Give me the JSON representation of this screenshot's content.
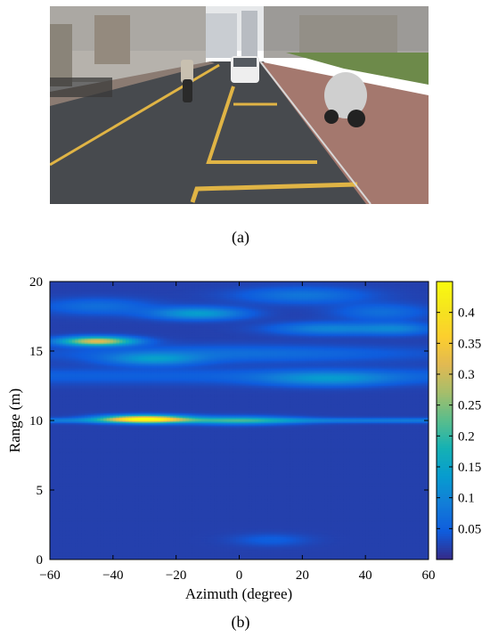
{
  "captions": {
    "a": "(a)",
    "b": "(b)"
  },
  "photo": {
    "scene": "street-scene-photo",
    "colors": {
      "sky": "#e6e8ea",
      "road": "#474a4e",
      "marking": "#e0b445",
      "sidewalk": "#a4786e",
      "grass": "#6d8a4a"
    }
  },
  "chart_data": {
    "type": "heatmap",
    "title": "",
    "xlabel": "Azimuth (degree)",
    "ylabel": "Range (m)",
    "xlim": [
      -60,
      60
    ],
    "ylim": [
      0,
      20
    ],
    "xticks": [
      -60,
      -40,
      -20,
      0,
      20,
      40,
      60
    ],
    "yticks": [
      0,
      5,
      10,
      15,
      20
    ],
    "colorbar": {
      "range": [
        0,
        0.45
      ],
      "ticks": [
        0.05,
        0.1,
        0.15,
        0.2,
        0.25,
        0.3,
        0.35,
        0.4
      ],
      "colormap": "parula"
    },
    "background_level": 0.02,
    "blobs": [
      {
        "azimuth": -30,
        "range": 10.1,
        "peak": 0.42,
        "width_az": 9,
        "width_r": 0.18
      },
      {
        "azimuth": -45,
        "range": 15.7,
        "peak": 0.3,
        "width_az": 8,
        "width_r": 0.22
      },
      {
        "azimuth": 0,
        "range": 10.0,
        "peak": 0.13,
        "width_az": 12,
        "width_r": 0.2
      },
      {
        "azimuth": -13,
        "range": 17.7,
        "peak": 0.12,
        "width_az": 10,
        "width_r": 0.3
      },
      {
        "azimuth": -27,
        "range": 14.4,
        "peak": 0.1,
        "width_az": 10,
        "width_r": 0.3
      },
      {
        "azimuth": 28,
        "range": 13.0,
        "peak": 0.09,
        "width_az": 14,
        "width_r": 0.35
      },
      {
        "azimuth": 28,
        "range": 16.6,
        "peak": 0.08,
        "width_az": 12,
        "width_r": 0.3
      },
      {
        "azimuth": 50,
        "range": 16.6,
        "peak": 0.07,
        "width_az": 8,
        "width_r": 0.3
      },
      {
        "azimuth": 20,
        "range": 19.0,
        "peak": 0.06,
        "width_az": 14,
        "width_r": 0.4
      },
      {
        "azimuth": 45,
        "range": 17.8,
        "peak": 0.05,
        "width_az": 10,
        "width_r": 0.4
      },
      {
        "azimuth": -45,
        "range": 18.2,
        "peak": 0.05,
        "width_az": 12,
        "width_r": 0.4
      },
      {
        "azimuth": 0,
        "range": 14.8,
        "peak": 0.05,
        "width_az": 40,
        "width_r": 0.4
      },
      {
        "azimuth": 10,
        "range": 1.4,
        "peak": 0.03,
        "width_az": 8,
        "width_r": 0.3
      }
    ],
    "ridges": [
      {
        "range": 10.0,
        "level": 0.07,
        "width_r": 0.12
      },
      {
        "range": 13.2,
        "level": 0.03,
        "width_r": 0.4
      }
    ]
  }
}
